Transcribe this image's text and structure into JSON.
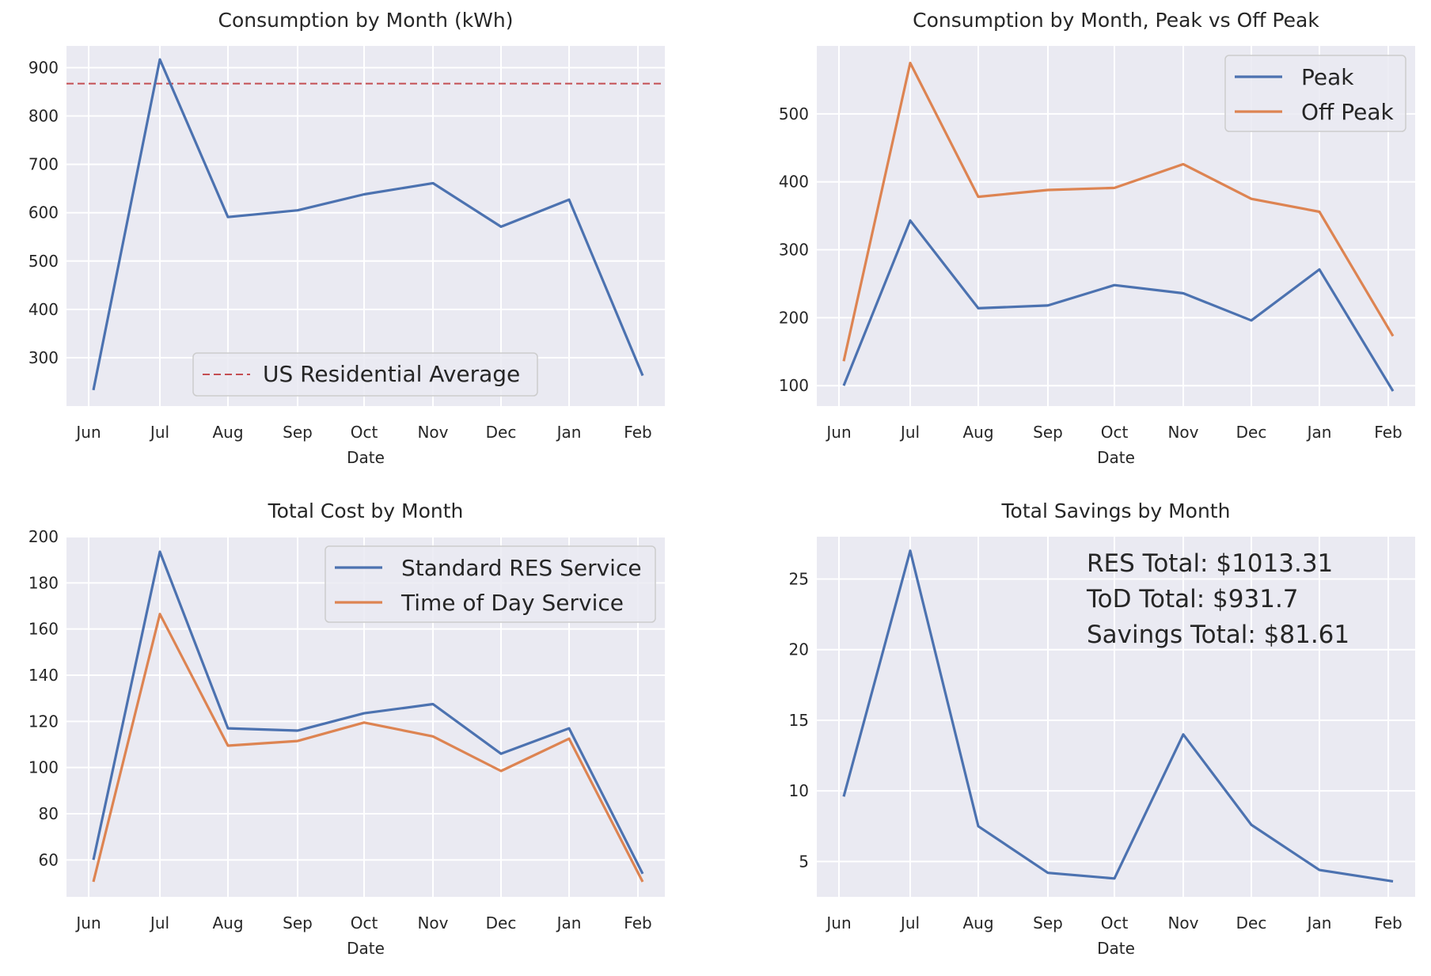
{
  "chart_data": [
    {
      "type": "line",
      "title": "Consumption by Month (kWh)",
      "xlabel": "Date",
      "ylabel": "",
      "categories": [
        "Jun",
        "Jul",
        "Aug",
        "Sep",
        "Oct",
        "Nov",
        "Dec",
        "Jan",
        "Feb"
      ],
      "yticks": [
        300,
        400,
        500,
        600,
        700,
        800,
        900
      ],
      "ylim": [
        200,
        945
      ],
      "series": [
        {
          "name": "",
          "values": [
            233,
            917,
            591,
            605,
            638,
            661,
            571,
            627,
            263
          ]
        }
      ],
      "reference_lines": [
        {
          "name": "US Residential Average",
          "value": 867,
          "style": "dashed"
        }
      ],
      "legend": [
        "US Residential Average"
      ],
      "legend_position": "lower-center",
      "grid": true
    },
    {
      "type": "line",
      "title": "Consumption by Month, Peak vs Off Peak",
      "xlabel": "Date",
      "ylabel": "",
      "categories": [
        "Jun",
        "Jul",
        "Aug",
        "Sep",
        "Oct",
        "Nov",
        "Dec",
        "Jan",
        "Feb"
      ],
      "yticks": [
        100,
        200,
        300,
        400,
        500
      ],
      "ylim": [
        70,
        600
      ],
      "series": [
        {
          "name": "Peak",
          "values": [
            100,
            343,
            214,
            218,
            248,
            236,
            196,
            271,
            92
          ]
        },
        {
          "name": "Off Peak",
          "values": [
            136,
            575,
            378,
            388,
            391,
            426,
            375,
            356,
            173
          ]
        }
      ],
      "legend": [
        "Peak",
        "Off Peak"
      ],
      "legend_position": "upper-right",
      "grid": true
    },
    {
      "type": "line",
      "title": "Total Cost by Month",
      "xlabel": "Date",
      "ylabel": "",
      "categories": [
        "Jun",
        "Jul",
        "Aug",
        "Sep",
        "Oct",
        "Nov",
        "Dec",
        "Jan",
        "Feb"
      ],
      "yticks": [
        60,
        80,
        100,
        120,
        140,
        160,
        180,
        200
      ],
      "ylim": [
        44,
        200
      ],
      "series": [
        {
          "name": "Standard RES Service",
          "values": [
            60,
            193.5,
            117,
            116,
            123.5,
            127.5,
            106,
            117,
            54
          ]
        },
        {
          "name": "Time of Day Service",
          "values": [
            50.5,
            166.5,
            109.5,
            111.5,
            119.5,
            113.5,
            98.5,
            112.5,
            50.5
          ]
        }
      ],
      "legend": [
        "Standard RES Service",
        "Time of Day Service"
      ],
      "legend_position": "upper-right",
      "grid": true
    },
    {
      "type": "line",
      "title": "Total Savings by Month",
      "xlabel": "Date",
      "ylabel": "",
      "categories": [
        "Jun",
        "Jul",
        "Aug",
        "Sep",
        "Oct",
        "Nov",
        "Dec",
        "Jan",
        "Feb"
      ],
      "yticks": [
        5,
        10,
        15,
        20,
        25
      ],
      "ylim": [
        2.5,
        28
      ],
      "series": [
        {
          "name": "",
          "values": [
            9.6,
            27,
            7.5,
            4.2,
            3.8,
            14,
            7.6,
            4.4,
            3.6
          ]
        }
      ],
      "annotations": [
        "RES Total: $1013.31",
        "ToD Total: $931.7",
        "Savings Total: $81.61"
      ],
      "grid": true
    }
  ],
  "colors": {
    "blue": "#4c72b0",
    "orange": "#dd8452",
    "red": "#c44e52",
    "panel_bg": "#eaeaf2",
    "grid": "#ffffff",
    "text": "#262626"
  }
}
